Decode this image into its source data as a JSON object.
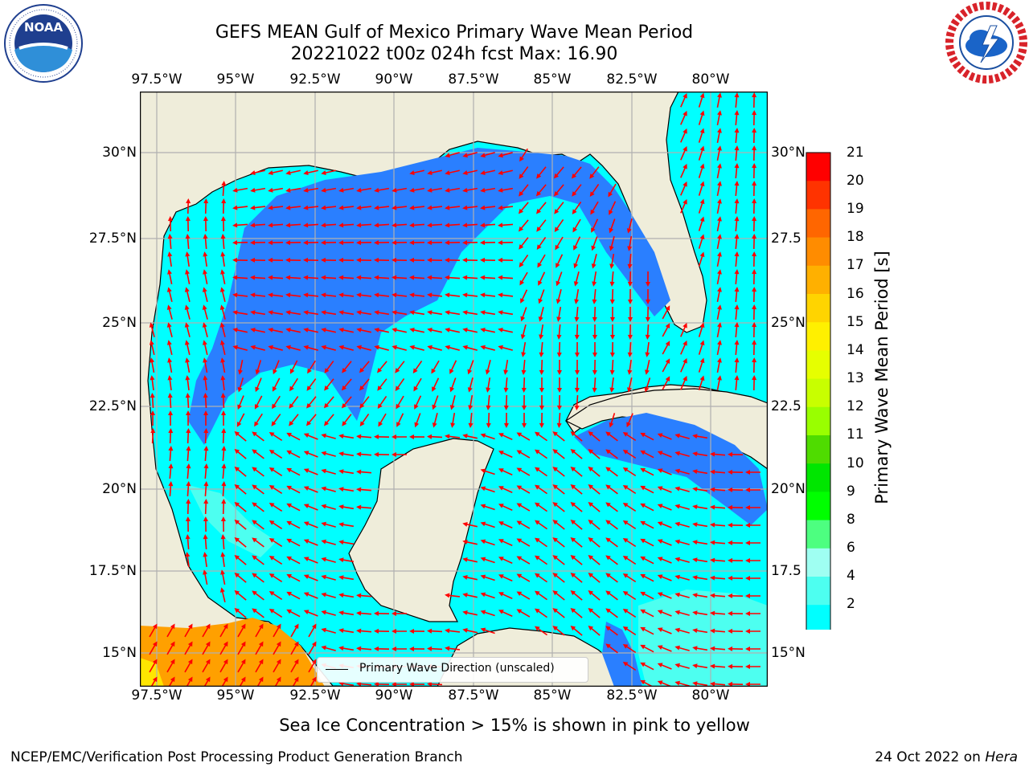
{
  "header": {
    "title_line1": "GEFS MEAN Gulf of Mexico Primary Wave Mean Period",
    "title_line2": "20221022 t00z 024h fcst   Max: 16.90"
  },
  "logos": {
    "left": {
      "name": "noaa-logo",
      "text": "NOAA",
      "ring_text": "NATIONAL OCEANIC AND ATMOSPHERIC ADMINISTRATION · U.S. DEPARTMENT OF COMMERCE"
    },
    "right": {
      "name": "nws-logo",
      "ring_text": "NATIONAL WEATHER SERVICE"
    }
  },
  "map": {
    "lon_labels": [
      "97.5°W",
      "95°W",
      "92.5°W",
      "90°W",
      "87.5°W",
      "85°W",
      "82.5°W",
      "80°W"
    ],
    "lat_labels_left": [
      "30°N",
      "27.5°N",
      "25°N",
      "22.5°N",
      "20°N",
      "17.5°N",
      "15°N"
    ],
    "lat_labels_right": [
      "30°N",
      "27.5",
      "25°N",
      "22.5",
      "20°N",
      "17.5",
      "15°N"
    ],
    "colors": {
      "land": "#efedda",
      "coast": "#000000",
      "grid": "#b0b0b0",
      "arrow": "#ff0000",
      "period_2_4": "#2a7fff",
      "period_4_6": "#00ffff",
      "period_6_8": "#4dfff0",
      "period_8_9": "#9ffff2",
      "period_16_17": "#ffb000",
      "period_17_18": "#ffa000",
      "period_15_16": "#ffe600"
    }
  },
  "legend": {
    "label": "Primary Wave Direction (unscaled)"
  },
  "colorbar": {
    "label": "Primary Wave Mean Period [s]",
    "ticks": [
      "21",
      "20",
      "19",
      "18",
      "17",
      "16",
      "15",
      "14",
      "13",
      "12",
      "11",
      "10",
      "9",
      "8",
      "6",
      "4",
      "2"
    ],
    "colors": [
      "#ff0000",
      "#ff3300",
      "#ff6600",
      "#ff8c00",
      "#ffb000",
      "#ffd400",
      "#fff000",
      "#e6ff00",
      "#c8ff00",
      "#99ff00",
      "#4fdc00",
      "#00e600",
      "#00ff00",
      "#4dff80",
      "#9ffff2",
      "#4dfff0",
      "#00ffff",
      "#1a7fff",
      "#0000ff"
    ]
  },
  "subtitle": "Sea Ice Concentration > 15% is shown in pink to yellow",
  "footer": {
    "left": "NCEP/EMC/Verification Post Processing Product Generation Branch",
    "right_prefix": "24 Oct 2022 on ",
    "right_host": "Hera"
  }
}
